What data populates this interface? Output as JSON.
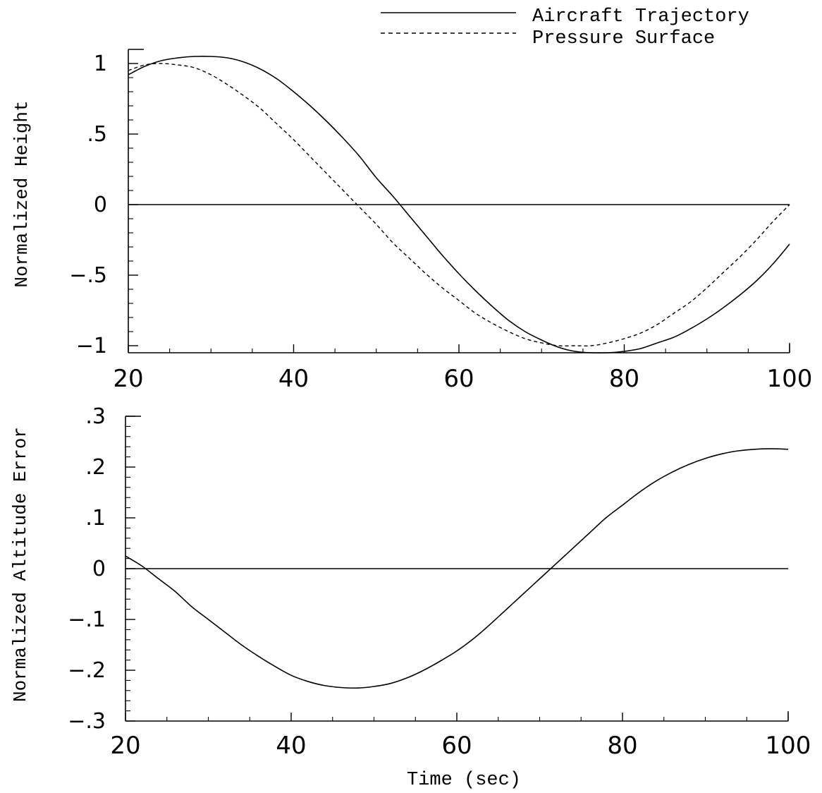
{
  "legend": {
    "entries": [
      {
        "label": "Aircraft Trajectory",
        "style": "solid"
      },
      {
        "label": "Pressure Surface",
        "style": "dashed"
      }
    ],
    "placement": "top-right"
  },
  "chart_data": [
    {
      "type": "line",
      "title": "",
      "xlabel": "",
      "ylabel": "Normalized Height",
      "xlim": [
        20,
        100
      ],
      "ylim": [
        -1.05,
        1.1
      ],
      "x_ticks": [
        20,
        40,
        60,
        80,
        100
      ],
      "x_tick_labels": [
        "20",
        "40",
        "60",
        "80",
        "100"
      ],
      "y_ticks": [
        1,
        0.5,
        0,
        -0.5,
        -1
      ],
      "y_tick_labels": [
        "1",
        ".5",
        "0",
        "-.5",
        "-1"
      ],
      "grid": false,
      "zero_line": true,
      "series": [
        {
          "name": "Aircraft Trajectory",
          "style": "solid",
          "x": [
            20,
            22,
            24,
            26,
            28,
            30,
            32,
            34,
            36,
            38,
            40,
            42,
            44,
            46,
            48,
            50,
            52,
            54,
            56,
            58,
            60,
            62,
            64,
            66,
            68,
            70,
            72,
            74,
            76,
            78,
            80,
            82,
            84,
            86,
            88,
            90,
            92,
            94,
            96,
            98,
            100
          ],
          "y": [
            0.92,
            0.98,
            1.02,
            1.04,
            1.05,
            1.05,
            1.04,
            1.01,
            0.96,
            0.89,
            0.8,
            0.7,
            0.59,
            0.47,
            0.34,
            0.19,
            0.06,
            -0.08,
            -0.22,
            -0.36,
            -0.49,
            -0.61,
            -0.72,
            -0.82,
            -0.9,
            -0.96,
            -1.01,
            -1.04,
            -1.05,
            -1.05,
            -1.04,
            -1.02,
            -0.98,
            -0.94,
            -0.88,
            -0.81,
            -0.73,
            -0.64,
            -0.54,
            -0.42,
            -0.28
          ]
        },
        {
          "name": "Pressure Surface",
          "style": "dashed",
          "x": [
            20,
            22,
            24,
            26,
            28,
            30,
            32,
            34,
            36,
            38,
            40,
            42,
            44,
            46,
            48,
            50,
            52,
            54,
            56,
            58,
            60,
            62,
            64,
            66,
            68,
            70,
            72,
            74,
            76,
            78,
            80,
            82,
            84,
            86,
            88,
            90,
            92,
            94,
            96,
            98,
            100
          ],
          "y": [
            0.95,
            0.99,
            1.0,
            0.99,
            0.97,
            0.92,
            0.85,
            0.77,
            0.68,
            0.57,
            0.46,
            0.34,
            0.22,
            0.1,
            -0.02,
            -0.14,
            -0.27,
            -0.38,
            -0.49,
            -0.59,
            -0.68,
            -0.77,
            -0.84,
            -0.9,
            -0.95,
            -0.98,
            -1.0,
            -1.0,
            -1.0,
            -0.98,
            -0.95,
            -0.91,
            -0.85,
            -0.77,
            -0.69,
            -0.59,
            -0.48,
            -0.37,
            -0.25,
            -0.12,
            0.0
          ]
        }
      ]
    },
    {
      "type": "line",
      "title": "",
      "xlabel": "Time (sec)",
      "ylabel": "Normalized Altitude Error",
      "xlim": [
        20,
        100
      ],
      "ylim": [
        -0.3,
        0.3
      ],
      "x_ticks": [
        20,
        40,
        60,
        80,
        100
      ],
      "x_tick_labels": [
        "20",
        "40",
        "60",
        "80",
        "100"
      ],
      "y_ticks": [
        0.3,
        0.2,
        0.1,
        0,
        -0.1,
        -0.2,
        -0.3
      ],
      "y_tick_labels": [
        ".3",
        ".2",
        ".1",
        "0",
        "-.1",
        "-.2",
        "-.3"
      ],
      "grid": false,
      "zero_line": true,
      "series": [
        {
          "style": "solid",
          "x": [
            20,
            22,
            24,
            26,
            28,
            30,
            32,
            34,
            36,
            38,
            40,
            42,
            44,
            46,
            48,
            50,
            52,
            54,
            56,
            58,
            60,
            62,
            64,
            66,
            68,
            70,
            72,
            74,
            76,
            78,
            80,
            82,
            84,
            86,
            88,
            90,
            92,
            94,
            96,
            98,
            100
          ],
          "y": [
            0.025,
            0.005,
            -0.02,
            -0.045,
            -0.075,
            -0.1,
            -0.125,
            -0.15,
            -0.172,
            -0.192,
            -0.21,
            -0.222,
            -0.23,
            -0.234,
            -0.235,
            -0.232,
            -0.226,
            -0.215,
            -0.2,
            -0.182,
            -0.162,
            -0.138,
            -0.11,
            -0.08,
            -0.05,
            -0.02,
            0.01,
            0.04,
            0.07,
            0.1,
            0.125,
            0.15,
            0.172,
            0.19,
            0.205,
            0.217,
            0.226,
            0.232,
            0.235,
            0.236,
            0.235
          ]
        }
      ]
    }
  ]
}
